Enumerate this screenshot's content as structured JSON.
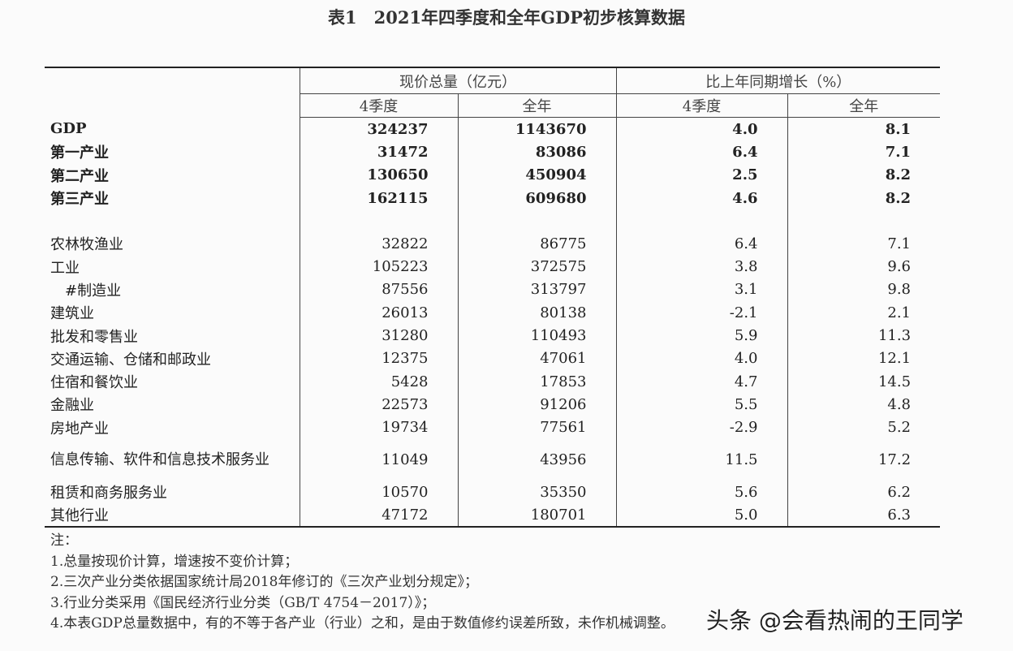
{
  "title": "表1　2021年四季度和全年GDP初步核算数据",
  "header": {
    "group1": "现价总量（亿元）",
    "group2": "比上年同期增长（%）",
    "sub": [
      "4季度",
      "全年",
      "4季度",
      "全年"
    ]
  },
  "rows_bold": [
    {
      "name": "GDP",
      "v": [
        "324237",
        "1143670",
        "4.0",
        "8.1"
      ]
    },
    {
      "name": "第一产业",
      "v": [
        "31472",
        "83086",
        "6.4",
        "7.1"
      ]
    },
    {
      "name": "第二产业",
      "v": [
        "130650",
        "450904",
        "2.5",
        "8.2"
      ]
    },
    {
      "name": "第三产业",
      "v": [
        "162115",
        "609680",
        "4.6",
        "8.2"
      ]
    }
  ],
  "rows": [
    {
      "name": "农林牧渔业",
      "v": [
        "32822",
        "86775",
        "6.4",
        "7.1"
      ]
    },
    {
      "name": "工业",
      "v": [
        "105223",
        "372575",
        "3.8",
        "9.6"
      ]
    },
    {
      "name": "　#制造业",
      "v": [
        "87556",
        "313797",
        "3.1",
        "9.8"
      ]
    },
    {
      "name": "建筑业",
      "v": [
        "26013",
        "80138",
        "-2.1",
        "2.1"
      ]
    },
    {
      "name": "批发和零售业",
      "v": [
        "31280",
        "110493",
        "5.9",
        "11.3"
      ]
    },
    {
      "name": "交通运输、仓储和邮政业",
      "v": [
        "12375",
        "47061",
        "4.0",
        "12.1"
      ]
    },
    {
      "name": "住宿和餐饮业",
      "v": [
        "5428",
        "17853",
        "4.7",
        "14.5"
      ]
    },
    {
      "name": "金融业",
      "v": [
        "22573",
        "91206",
        "5.5",
        "4.8"
      ]
    },
    {
      "name": "房地产业",
      "v": [
        "19734",
        "77561",
        "-2.9",
        "5.2"
      ]
    },
    {
      "name": "信息传输、软件和信息技术服务业",
      "v": [
        "11049",
        "43956",
        "11.5",
        "17.2"
      ]
    },
    {
      "name": "租赁和商务服务业",
      "v": [
        "10570",
        "35350",
        "5.6",
        "6.2"
      ]
    },
    {
      "name": "其他行业",
      "v": [
        "47172",
        "180701",
        "5.0",
        "6.3"
      ]
    }
  ],
  "notes": [
    "注：",
    "1.总量按现价计算，增速按不变价计算；",
    "2.三次产业分类依据国家统计局2018年修订的《三次产业划分规定》；",
    "3.行业分类采用《国民经济行业分类（GB/T 4754－2017）》；",
    "4.本表GDP总量数据中，有的不等于各产业（行业）之和，是由于数值修约误差所致，未作机械调整。"
  ],
  "watermark": "头条 @会看热闹的王同学"
}
